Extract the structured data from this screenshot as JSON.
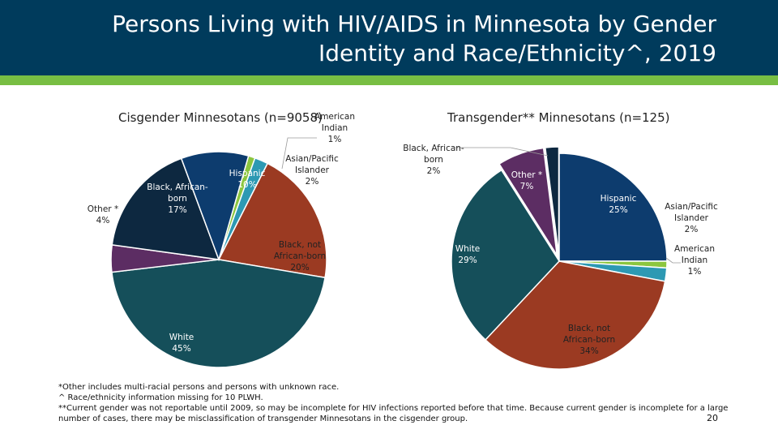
{
  "title": "Persons Living with HIV/AIDS in Minnesota by Gender Identity and Race/Ethnicity^, 2019",
  "colors": {
    "header": "#003b5c",
    "stripe": "#78be43",
    "american_indian": "#8cc63f",
    "asian_pacific_islander": "#2d99b3",
    "black_not_african_born": "#9b3a22",
    "white": "#154f5a",
    "other": "#5c2d63",
    "black_african_born": "#0d2840",
    "hispanic": "#0d3c6e"
  },
  "chart_data": [
    {
      "type": "pie",
      "title": "Cisgender Minnesotans (n=9058)",
      "slices": [
        {
          "label": "American Indian",
          "label_lines": [
            "American",
            "Indian",
            "1%"
          ],
          "value": 1,
          "color": "#8cc63f"
        },
        {
          "label": "Asian/Pacific Islander",
          "label_lines": [
            "Asian/Pacific",
            "Islander",
            "2%"
          ],
          "value": 2,
          "color": "#2d99b3"
        },
        {
          "label": "Black, not African-born",
          "label_lines": [
            "Black, not",
            "African-born",
            "20%"
          ],
          "value": 20,
          "color": "#9b3a22"
        },
        {
          "label": "White",
          "label_lines": [
            "White",
            "45%"
          ],
          "value": 45,
          "color": "#154f5a"
        },
        {
          "label": "Other *",
          "label_lines": [
            "Other *",
            "4%"
          ],
          "value": 4,
          "color": "#5c2d63"
        },
        {
          "label": "Black, African-born",
          "label_lines": [
            "Black, African-",
            "born",
            "17%"
          ],
          "value": 17,
          "color": "#0d2840"
        },
        {
          "label": "Hispanic",
          "label_lines": [
            "Hispanic",
            "10%"
          ],
          "value": 10,
          "color": "#0d3c6e"
        }
      ]
    },
    {
      "type": "pie",
      "title": "Transgender** Minnesotans (n=125)",
      "slices": [
        {
          "label": "Hispanic",
          "label_lines": [
            "Hispanic",
            "25%"
          ],
          "value": 25,
          "color": "#0d3c6e"
        },
        {
          "label": "American Indian",
          "label_lines": [
            "American",
            "Indian",
            "1%"
          ],
          "value": 1,
          "color": "#8cc63f"
        },
        {
          "label": "Asian/Pacific Islander",
          "label_lines": [
            "Asian/Pacific",
            "Islander",
            "2%"
          ],
          "value": 2,
          "color": "#2d99b3"
        },
        {
          "label": "Black, not African-born",
          "label_lines": [
            "Black, not",
            "African-born",
            "34%"
          ],
          "value": 34,
          "color": "#9b3a22"
        },
        {
          "label": "White",
          "label_lines": [
            "White",
            "29%"
          ],
          "value": 29,
          "color": "#154f5a"
        },
        {
          "label": "Other *",
          "label_lines": [
            "Other *",
            "7%"
          ],
          "value": 7,
          "color": "#5c2d63"
        },
        {
          "label": "Black, African-born",
          "label_lines": [
            "Black, African-",
            "born",
            "2%"
          ],
          "value": 2,
          "color": "#0d2840"
        }
      ]
    }
  ],
  "footnotes": [
    "*Other includes multi-racial persons and persons with unknown race.",
    "^ Race/ethnicity information missing for 10 PLWH.",
    "**Current gender was not reportable until 2009, so may be incomplete for HIV infections reported before that time. Because current gender is incomplete for a large",
    "number of cases, there may be misclassification of transgender Minnesotans in the cisgender group."
  ],
  "page_number": "20"
}
